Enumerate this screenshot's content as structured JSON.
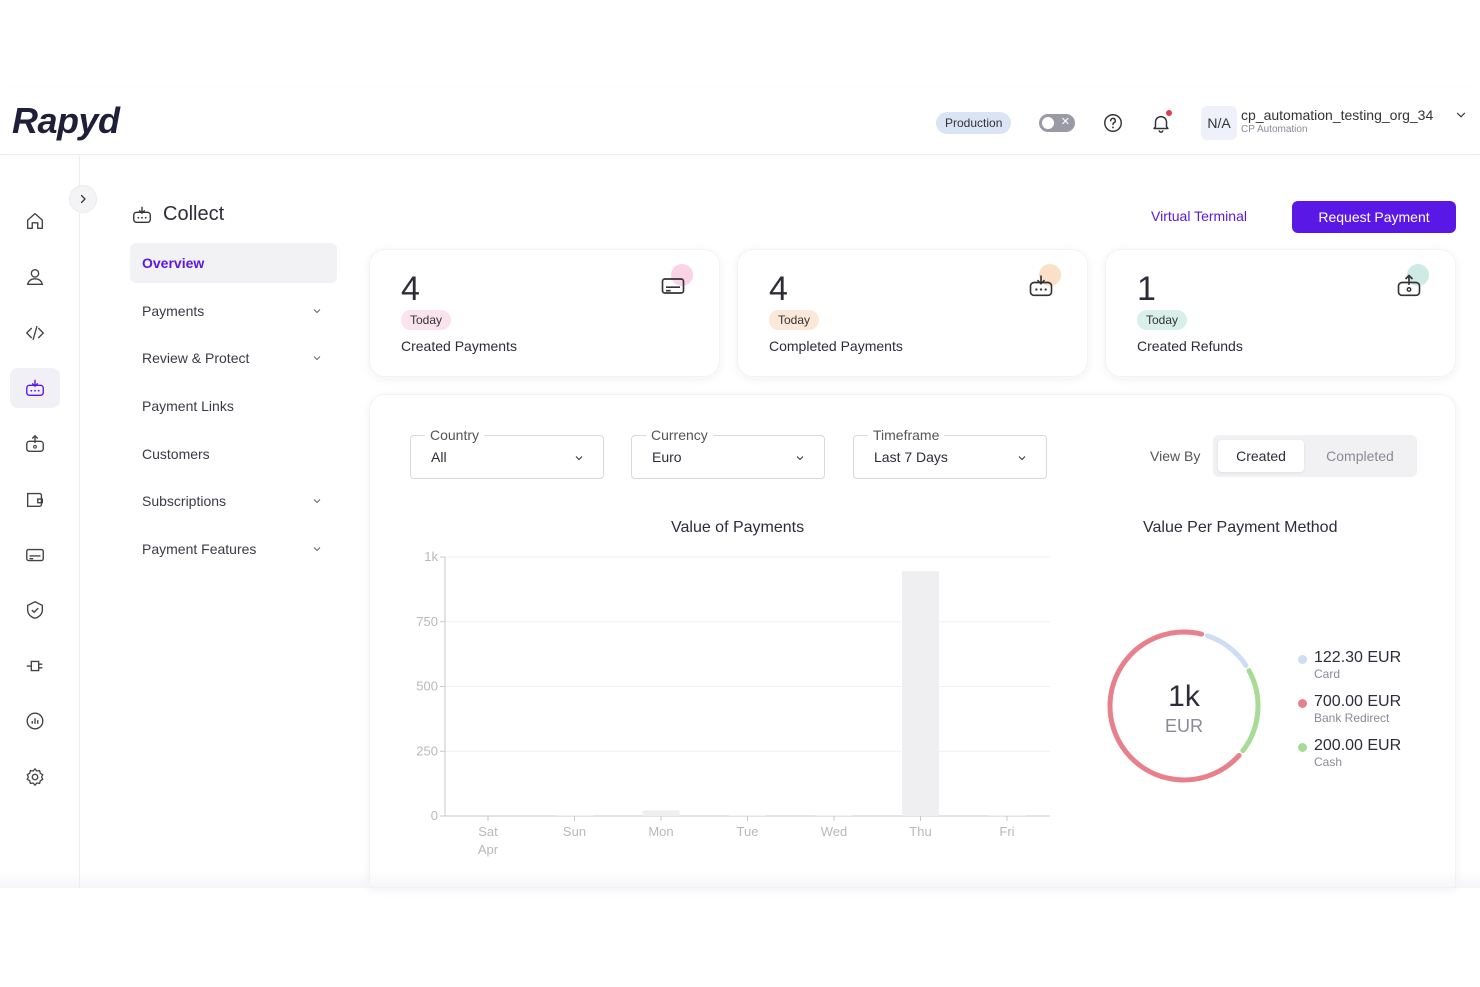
{
  "header": {
    "brand": "Rapyd",
    "environment_badge": "Production",
    "org_initials": "N/A",
    "org_name": "cp_automation_testing_org_34",
    "org_sub": "CP Automation"
  },
  "rail": {
    "items": [
      {
        "icon": "home-icon"
      },
      {
        "icon": "user-icon"
      },
      {
        "icon": "code-icon"
      },
      {
        "icon": "collect-icon",
        "active": true
      },
      {
        "icon": "disburse-icon"
      },
      {
        "icon": "wallet-icon"
      },
      {
        "icon": "card-icon"
      },
      {
        "icon": "shield-icon"
      },
      {
        "icon": "plug-icon"
      },
      {
        "icon": "reports-icon"
      },
      {
        "icon": "settings-icon"
      }
    ]
  },
  "section": {
    "title": "Collect",
    "nav": [
      {
        "label": "Overview",
        "active": true
      },
      {
        "label": "Payments",
        "has_children": true
      },
      {
        "label": "Review & Protect",
        "has_children": true
      },
      {
        "label": "Payment Links"
      },
      {
        "label": "Customers"
      },
      {
        "label": "Subscriptions",
        "has_children": true
      },
      {
        "label": "Payment Features",
        "has_children": true
      }
    ]
  },
  "actions": {
    "virtual_terminal": "Virtual Terminal",
    "request_payment": "Request Payment"
  },
  "stats": [
    {
      "value": "4",
      "pill": "Today",
      "label": "Created Payments",
      "pill_color": "#fbe3ee",
      "blob_color": "#fbd3e6"
    },
    {
      "value": "4",
      "pill": "Today",
      "label": "Completed Payments",
      "pill_color": "#fbe8d9",
      "blob_color": "#fbe0c8"
    },
    {
      "value": "1",
      "pill": "Today",
      "label": "Created Refunds",
      "pill_color": "#d9efe9",
      "blob_color": "#cdebe4"
    }
  ],
  "filters": {
    "country": {
      "label": "Country",
      "value": "All"
    },
    "currency": {
      "label": "Currency",
      "value": "Euro"
    },
    "timeframe": {
      "label": "Timeframe",
      "value": "Last 7 Days"
    },
    "view_by_label": "View By",
    "view_by_options": [
      "Created",
      "Completed"
    ],
    "view_by_selected": "Created"
  },
  "chart_data": [
    {
      "type": "bar",
      "title": "Value of Payments",
      "categories": [
        "Sat",
        "Sun",
        "Mon",
        "Tue",
        "Wed",
        "Thu",
        "Fri"
      ],
      "category_sublabels": [
        "Apr",
        "",
        "",
        "",
        "",
        "",
        ""
      ],
      "values": [
        0,
        3,
        22,
        3,
        3,
        945,
        3
      ],
      "ylim": [
        0,
        1000
      ],
      "yticks": [
        0,
        250,
        500,
        750,
        1000
      ],
      "ytick_labels": [
        "0",
        "250",
        "500",
        "750",
        "1k"
      ],
      "grid": true,
      "bar_color": "#efeff1"
    },
    {
      "type": "pie",
      "title": "Value Per Payment Method",
      "total_label": "1k",
      "total_unit": "EUR",
      "slices": [
        {
          "label": "Card",
          "value": 122.3,
          "display": "122.30 EUR",
          "color": "#cfdcf6"
        },
        {
          "label": "Bank Redirect",
          "value": 700.0,
          "display": "700.00 EUR",
          "color": "#e8808c"
        },
        {
          "label": "Cash",
          "value": 200.0,
          "display": "200.00 EUR",
          "color": "#a8dc96"
        }
      ]
    }
  ]
}
